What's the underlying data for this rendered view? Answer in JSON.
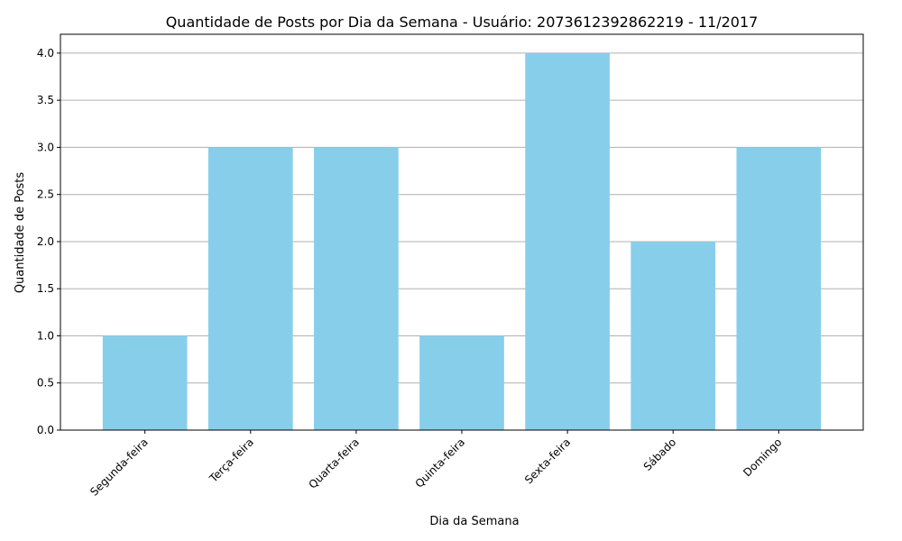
{
  "chart_data": {
    "type": "bar",
    "title": "Quantidade de Posts por Dia da Semana - Usuário: 2073612392862219 - 11/2017",
    "xlabel": "Dia da Semana",
    "ylabel": "Quantidade de Posts",
    "categories": [
      "Segunda-feira",
      "Terça-feira",
      "Quarta-feira",
      "Quinta-feira",
      "Sexta-feira",
      "Sábado",
      "Domingo"
    ],
    "values": [
      1,
      3,
      3,
      1,
      4,
      2,
      3
    ],
    "ylim": [
      0,
      4.2
    ],
    "yticks": [
      "0.0",
      "0.5",
      "1.0",
      "1.5",
      "2.0",
      "2.5",
      "3.0",
      "3.5",
      "4.0"
    ],
    "grid": "y-axis",
    "bar_color": "#87CEEB",
    "grid_color": "#b0b0b0"
  }
}
